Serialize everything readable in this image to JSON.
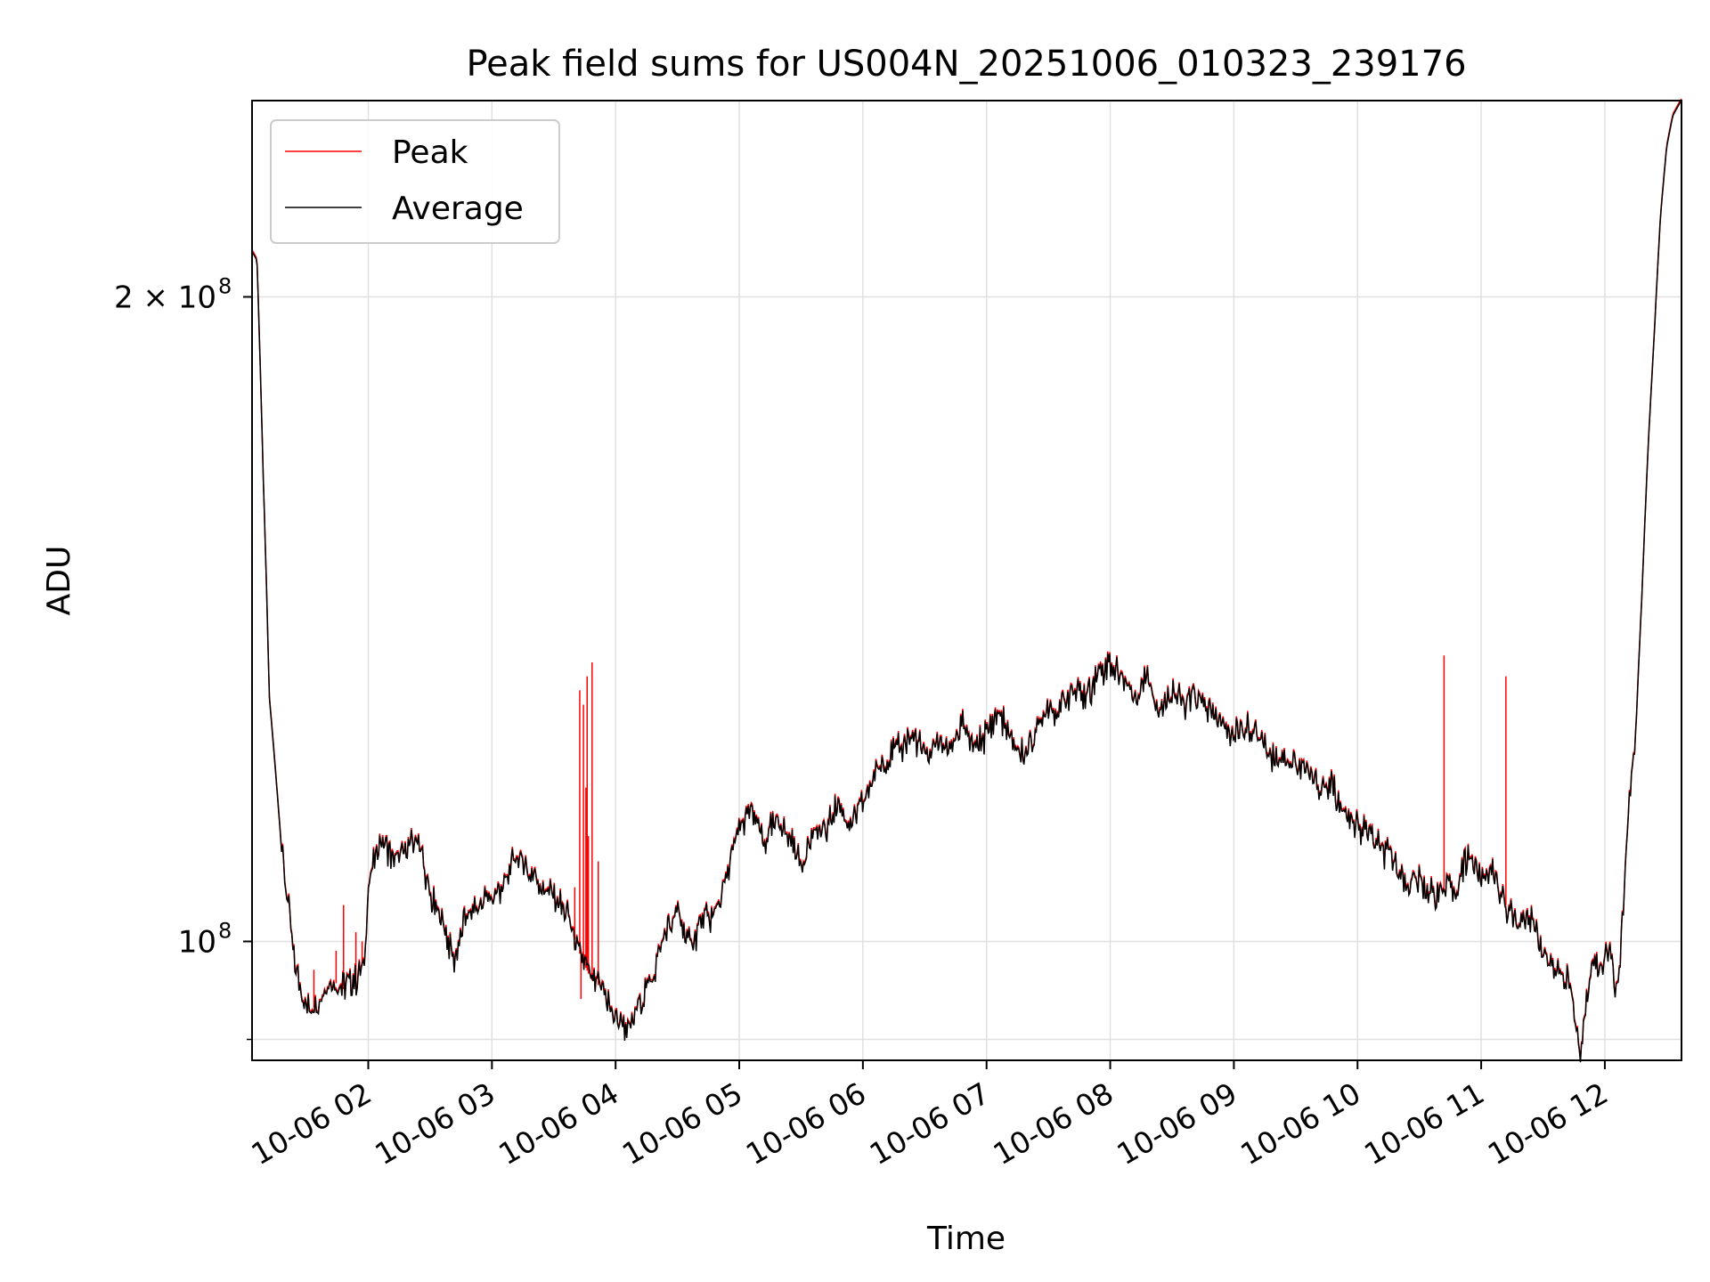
{
  "chart_data": {
    "type": "line",
    "title": "Peak field sums for US004N_20251006_010323_239176",
    "xlabel": "Time",
    "ylabel": "ADU",
    "yscale": "log",
    "ylim": [
      88000000,
      247000000
    ],
    "xlim_hours": [
      1.06,
      12.62
    ],
    "grid": true,
    "legend_position": "upper-left",
    "y_ticks": [
      {
        "value": 100000000,
        "label": "10",
        "exp": "8"
      },
      {
        "value": 200000000,
        "label": "2 × 10",
        "exp": "8"
      }
    ],
    "y_minor_ticks": [
      90000000
    ],
    "x_ticks": [
      {
        "value": 2,
        "label": "10-06 02"
      },
      {
        "value": 3,
        "label": "10-06 03"
      },
      {
        "value": 4,
        "label": "10-06 04"
      },
      {
        "value": 5,
        "label": "10-06 05"
      },
      {
        "value": 6,
        "label": "10-06 06"
      },
      {
        "value": 7,
        "label": "10-06 07"
      },
      {
        "value": 8,
        "label": "10-06 08"
      },
      {
        "value": 9,
        "label": "10-06 09"
      },
      {
        "value": 10,
        "label": "10-06 10"
      },
      {
        "value": 11,
        "label": "10-06 11"
      },
      {
        "value": 12,
        "label": "10-06 12"
      }
    ],
    "series": [
      {
        "name": "Peak",
        "color": "#ff0000",
        "spikes": [
          [
            1.56,
            0.97
          ],
          [
            1.74,
            0.99
          ],
          [
            1.8,
            1.04
          ],
          [
            1.9,
            1.01
          ],
          [
            1.95,
            1.0
          ],
          [
            3.67,
            1.06
          ],
          [
            3.71,
            1.31
          ],
          [
            3.72,
            0.94
          ],
          [
            3.74,
            1.29
          ],
          [
            3.76,
            1.18
          ],
          [
            3.77,
            1.33
          ],
          [
            3.78,
            1.12
          ],
          [
            3.81,
            1.35
          ],
          [
            3.86,
            1.09
          ],
          [
            10.7,
            1.36
          ],
          [
            11.2,
            1.33
          ]
        ]
      },
      {
        "name": "Average",
        "color": "#000000",
        "points": [
          [
            1.06,
            2.1
          ],
          [
            1.1,
            2.08
          ],
          [
            1.15,
            1.65
          ],
          [
            1.2,
            1.3
          ],
          [
            1.25,
            1.2
          ],
          [
            1.3,
            1.1
          ],
          [
            1.35,
            1.04
          ],
          [
            1.4,
            0.98
          ],
          [
            1.45,
            0.95
          ],
          [
            1.5,
            0.935
          ],
          [
            1.55,
            0.93
          ],
          [
            1.62,
            0.94
          ],
          [
            1.7,
            0.96
          ],
          [
            1.8,
            0.95
          ],
          [
            1.9,
            0.96
          ],
          [
            1.97,
            0.98
          ],
          [
            2.0,
            1.06
          ],
          [
            2.1,
            1.12
          ],
          [
            2.2,
            1.09
          ],
          [
            2.3,
            1.1
          ],
          [
            2.4,
            1.12
          ],
          [
            2.5,
            1.05
          ],
          [
            2.6,
            1.02
          ],
          [
            2.7,
            0.98
          ],
          [
            2.8,
            1.03
          ],
          [
            2.9,
            1.04
          ],
          [
            3.0,
            1.05
          ],
          [
            3.1,
            1.06
          ],
          [
            3.2,
            1.1
          ],
          [
            3.3,
            1.08
          ],
          [
            3.4,
            1.06
          ],
          [
            3.5,
            1.05
          ],
          [
            3.6,
            1.03
          ],
          [
            3.7,
            0.99
          ],
          [
            3.8,
            0.96
          ],
          [
            3.9,
            0.95
          ],
          [
            4.0,
            0.92
          ],
          [
            4.05,
            0.92
          ],
          [
            4.1,
            0.905
          ],
          [
            4.2,
            0.94
          ],
          [
            4.3,
            0.96
          ],
          [
            4.4,
            1.01
          ],
          [
            4.5,
            1.03
          ],
          [
            4.6,
            0.995
          ],
          [
            4.7,
            1.02
          ],
          [
            4.8,
            1.03
          ],
          [
            4.9,
            1.07
          ],
          [
            5.0,
            1.13
          ],
          [
            5.1,
            1.15
          ],
          [
            5.2,
            1.11
          ],
          [
            5.3,
            1.14
          ],
          [
            5.4,
            1.12
          ],
          [
            5.5,
            1.09
          ],
          [
            5.6,
            1.12
          ],
          [
            5.7,
            1.13
          ],
          [
            5.8,
            1.16
          ],
          [
            5.9,
            1.13
          ],
          [
            6.0,
            1.16
          ],
          [
            6.1,
            1.2
          ],
          [
            6.2,
            1.22
          ],
          [
            6.3,
            1.23
          ],
          [
            6.4,
            1.25
          ],
          [
            6.5,
            1.22
          ],
          [
            6.6,
            1.24
          ],
          [
            6.7,
            1.23
          ],
          [
            6.8,
            1.26
          ],
          [
            6.9,
            1.23
          ],
          [
            7.0,
            1.25
          ],
          [
            7.1,
            1.28
          ],
          [
            7.2,
            1.24
          ],
          [
            7.3,
            1.22
          ],
          [
            7.4,
            1.25
          ],
          [
            7.5,
            1.29
          ],
          [
            7.6,
            1.28
          ],
          [
            7.7,
            1.31
          ],
          [
            7.8,
            1.3
          ],
          [
            7.9,
            1.33
          ],
          [
            8.0,
            1.35
          ],
          [
            8.1,
            1.33
          ],
          [
            8.2,
            1.3
          ],
          [
            8.3,
            1.33
          ],
          [
            8.4,
            1.28
          ],
          [
            8.5,
            1.31
          ],
          [
            8.6,
            1.29
          ],
          [
            8.7,
            1.3
          ],
          [
            8.8,
            1.28
          ],
          [
            8.9,
            1.26
          ],
          [
            9.0,
            1.25
          ],
          [
            9.1,
            1.26
          ],
          [
            9.2,
            1.25
          ],
          [
            9.3,
            1.22
          ],
          [
            9.4,
            1.22
          ],
          [
            9.5,
            1.21
          ],
          [
            9.6,
            1.2
          ],
          [
            9.7,
            1.18
          ],
          [
            9.8,
            1.18
          ],
          [
            9.9,
            1.14
          ],
          [
            10.0,
            1.13
          ],
          [
            10.1,
            1.12
          ],
          [
            10.2,
            1.1
          ],
          [
            10.3,
            1.09
          ],
          [
            10.4,
            1.06
          ],
          [
            10.5,
            1.07
          ],
          [
            10.6,
            1.05
          ],
          [
            10.7,
            1.06
          ],
          [
            10.8,
            1.06
          ],
          [
            10.9,
            1.1
          ],
          [
            11.0,
            1.07
          ],
          [
            11.1,
            1.08
          ],
          [
            11.2,
            1.04
          ],
          [
            11.3,
            1.02
          ],
          [
            11.4,
            1.03
          ],
          [
            11.5,
            0.99
          ],
          [
            11.6,
            0.97
          ],
          [
            11.7,
            0.96
          ],
          [
            11.75,
            0.93
          ],
          [
            11.8,
            0.88
          ],
          [
            11.85,
            0.94
          ],
          [
            11.9,
            0.99
          ],
          [
            11.95,
            0.97
          ],
          [
            12.0,
            0.985
          ],
          [
            12.05,
            0.99
          ],
          [
            12.08,
            0.94
          ],
          [
            12.12,
            0.97
          ],
          [
            12.18,
            1.12
          ],
          [
            12.25,
            1.25
          ],
          [
            12.3,
            1.45
          ],
          [
            12.35,
            1.7
          ],
          [
            12.4,
            1.92
          ],
          [
            12.45,
            2.18
          ],
          [
            12.5,
            2.35
          ],
          [
            12.55,
            2.43
          ],
          [
            12.6,
            2.46
          ],
          [
            12.62,
            2.47
          ]
        ]
      }
    ]
  }
}
